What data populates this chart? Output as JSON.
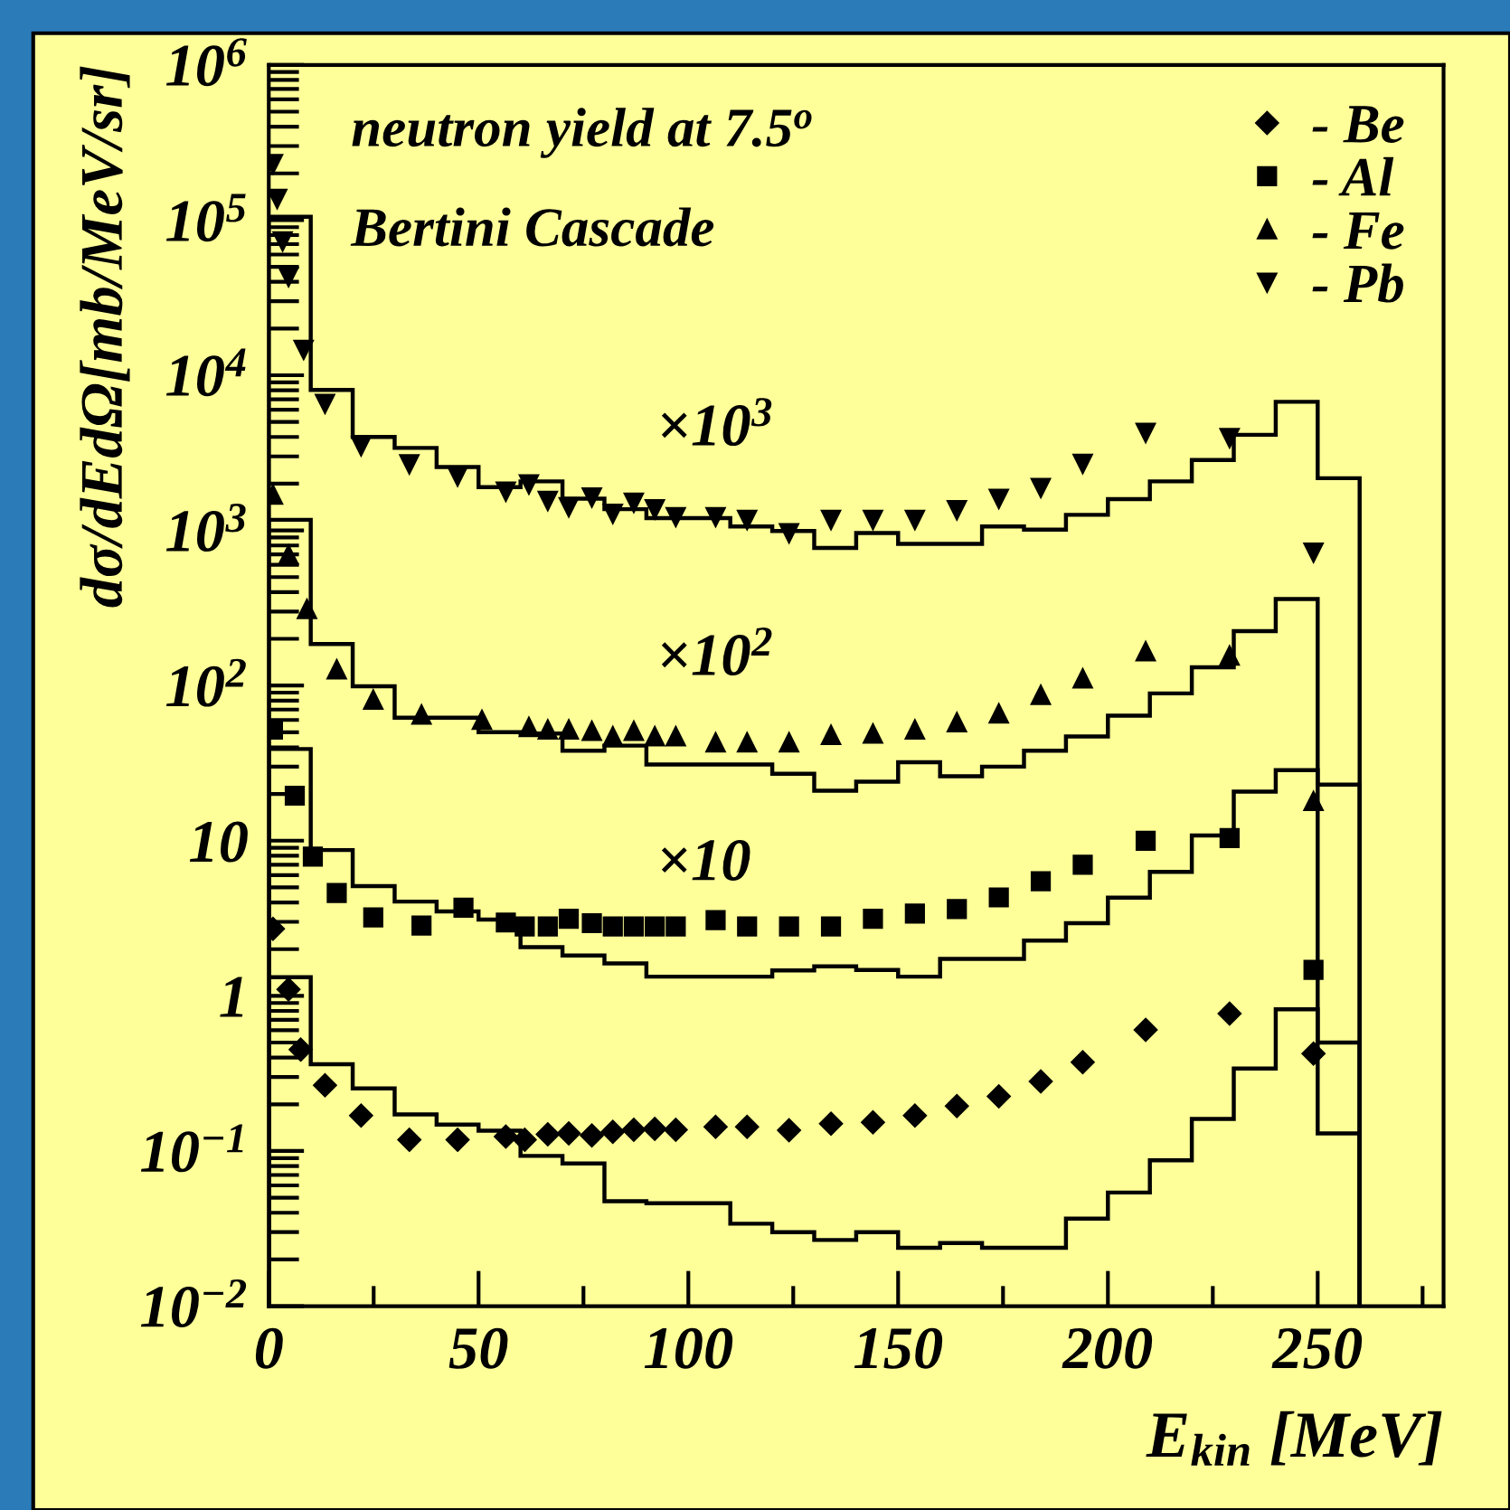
{
  "chart_data": {
    "type": "scatter",
    "log": "y",
    "xlabel": "E$_{kin}$ [MeV]",
    "ylabel": "dσ/dEdΩ[mb/MeV/sr]",
    "xlim": [
      0,
      280
    ],
    "xticks": [
      0,
      {
        "value": 25,
        "label": null
      },
      50,
      {
        "value": 75,
        "label": null
      },
      100,
      {
        "value": 125,
        "label": null
      },
      150,
      {
        "value": 175,
        "label": null
      },
      200,
      {
        "value": 225,
        "label": null
      },
      250,
      {
        "value": 275,
        "label": null
      }
    ],
    "ylim": [
      0.01,
      1000000
    ],
    "yticks": [
      {
        "value": 0.01,
        "label": "10$^{−2}$"
      },
      {
        "value": 0.1,
        "label": "10$^{−1}$"
      },
      1,
      10,
      {
        "value": 100,
        "label": "10$^{2}$"
      },
      {
        "value": 1000,
        "label": "10$^{3}$"
      },
      {
        "value": 10000,
        "label": "10$^{4}$"
      },
      {
        "value": 100000,
        "label": "10$^{5}$"
      },
      {
        "value": 1000000,
        "label": "10$^{6}$"
      }
    ],
    "grid": false,
    "legend": "top right",
    "annotations": [
      "neutron yield at 7.5$^{o}$",
      "Bertini Cascade",
      "×10$^{3}$",
      "×10$^{2}$",
      "×10"
    ],
    "bins": [
      0,
      10,
      20,
      30,
      40,
      50,
      60,
      70,
      80,
      90,
      100,
      110,
      120,
      130,
      140,
      150,
      160,
      170,
      180,
      190,
      200,
      210,
      220,
      230,
      240,
      250,
      260
    ],
    "series": [
      {
        "name": "- Be",
        "marker": "diamond",
        "color": "#000000",
        "x": [
          1,
          4.7,
          7.6,
          13.4,
          22,
          33.5,
          45,
          56.5,
          61,
          66.5,
          71.5,
          77,
          82,
          87,
          92,
          97,
          106.5,
          114,
          124,
          134,
          144,
          154,
          164,
          174,
          184,
          194,
          209,
          229,
          249
        ],
        "values": [
          2.7,
          1.1,
          0.45,
          0.265,
          0.169,
          0.118,
          0.118,
          0.124,
          0.118,
          0.128,
          0.13,
          0.126,
          0.133,
          0.137,
          0.139,
          0.137,
          0.143,
          0.143,
          0.136,
          0.15,
          0.153,
          0.169,
          0.195,
          0.225,
          0.281,
          0.374,
          0.604,
          0.768,
          0.424
        ]
      },
      {
        "name": "- Al",
        "marker": "square",
        "color": "#000000",
        "x": [
          1,
          6.2,
          10.5,
          16.2,
          24.9,
          36.4,
          46.4,
          56.5,
          61,
          66.5,
          71.5,
          77,
          82,
          87,
          92,
          97,
          106.5,
          114,
          124,
          134,
          144,
          154,
          164,
          174,
          184,
          194,
          209,
          229,
          249
        ],
        "values": [
          52,
          19.5,
          7.9,
          4.6,
          3.2,
          2.84,
          3.7,
          2.97,
          2.8,
          2.8,
          3.14,
          2.94,
          2.8,
          2.8,
          2.8,
          2.8,
          3.08,
          2.8,
          2.8,
          2.8,
          3.14,
          3.39,
          3.63,
          4.31,
          5.48,
          7.0,
          9.98,
          10.4,
          1.47
        ]
      },
      {
        "name": "- Fe",
        "marker": "triangle",
        "color": "#000000",
        "x": [
          1,
          4.7,
          9.1,
          16.2,
          24.9,
          36.4,
          50.8,
          62,
          66.5,
          71.5,
          77,
          82,
          87,
          92,
          97,
          106.5,
          114,
          124,
          134,
          144,
          154,
          164,
          174,
          184,
          194,
          209,
          229,
          249
        ],
        "values": [
          1700,
          697,
          311,
          127,
          81,
          65,
          60,
          54,
          52,
          52,
          51,
          47,
          51,
          47,
          47,
          43,
          43,
          43,
          48,
          49,
          52,
          58,
          66,
          87,
          111,
          166,
          156,
          18
        ]
      },
      {
        "name": "- Pb",
        "marker": "triangle_down",
        "color": "#000000",
        "x": [
          1,
          2,
          3.3,
          4.7,
          8.3,
          13.4,
          22,
          33.5,
          45,
          56.5,
          62,
          66.5,
          71.5,
          77,
          82,
          87,
          92,
          97,
          106.5,
          114,
          124,
          134,
          144,
          154,
          164,
          174,
          184,
          194,
          209,
          229,
          249
        ],
        "values": [
          230000,
          137000,
          73000,
          43000,
          14600,
          6550,
          3490,
          2670,
          2230,
          1780,
          1980,
          1550,
          1410,
          1630,
          1280,
          1510,
          1370,
          1220,
          1220,
          1170,
          960,
          1170,
          1170,
          1170,
          1350,
          1600,
          1880,
          2690,
          4260,
          3940,
          720
        ]
      },
      {
        "type": "histogram",
        "color": "#000000",
        "values": [
          1.32,
          0.362,
          0.253,
          0.172,
          0.148,
          0.135,
          0.093,
          0.083,
          0.0475,
          0.046,
          0.046,
          0.034,
          0.03,
          0.0267,
          0.03,
          0.0238,
          0.0255,
          0.0238,
          0.0238,
          0.0367,
          0.054,
          0.087,
          0.161,
          0.34,
          0.82,
          0.13
        ]
      },
      {
        "type": "histogram",
        "color": "#000000",
        "values": [
          39,
          8.7,
          5.1,
          4.05,
          3.5,
          3.1,
          2.06,
          1.82,
          1.62,
          1.33,
          1.33,
          1.33,
          1.46,
          1.55,
          1.47,
          1.33,
          1.73,
          1.73,
          2.27,
          2.94,
          4.3,
          6.3,
          10.8,
          20.7,
          28.5,
          0.5
        ]
      },
      {
        "type": "histogram",
        "color": "#000000",
        "values": [
          1170,
          185,
          99,
          62,
          62,
          50,
          49,
          38,
          41,
          31,
          31,
          31,
          27,
          21,
          24,
          32,
          26,
          30,
          38,
          47,
          64,
          89,
          131,
          224,
          361,
          23
        ]
      },
      {
        "type": "histogram",
        "color": "#000000",
        "values": [
          105000,
          8040,
          4000,
          3400,
          2560,
          1900,
          2070,
          1600,
          1370,
          1200,
          1200,
          1060,
          990,
          771,
          962,
          818,
          818,
          1060,
          1010,
          1260,
          1590,
          2070,
          2840,
          4130,
          6740,
          2170
        ]
      }
    ]
  }
}
